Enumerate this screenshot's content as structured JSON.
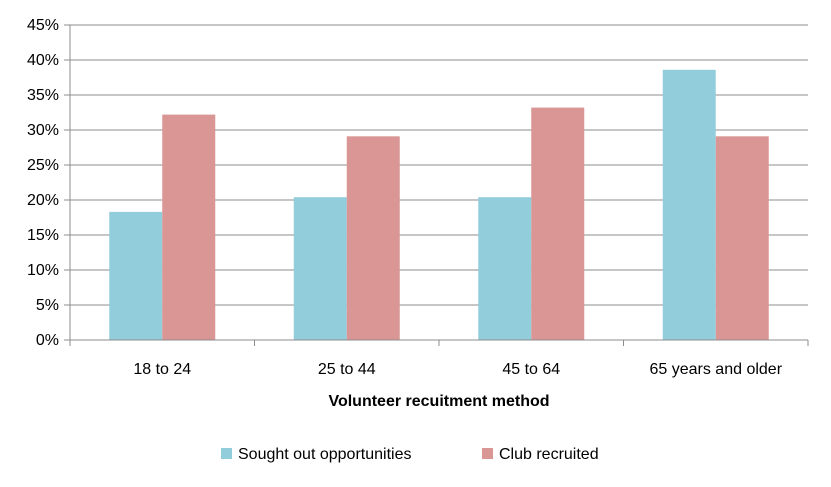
{
  "chart_data": {
    "type": "bar",
    "title": "",
    "xlabel": "Volunteer recuitment method",
    "ylabel": "",
    "categories": [
      "18 to 24",
      "25 to 44",
      "45 to 64",
      "65 years and older"
    ],
    "series": [
      {
        "name": "Sought out opportunities",
        "color": "#92CDDC",
        "values": [
          18.3,
          20.4,
          20.4,
          38.6
        ]
      },
      {
        "name": "Club recruited",
        "color": "#D99694",
        "values": [
          32.2,
          29.1,
          33.2,
          29.1
        ]
      }
    ],
    "ylim": [
      0,
      45
    ],
    "ytick_labels": [
      "0%",
      "5%",
      "10%",
      "15%",
      "20%",
      "25%",
      "30%",
      "35%",
      "40%",
      "45%"
    ],
    "grid": true,
    "legend_position": "bottom"
  }
}
